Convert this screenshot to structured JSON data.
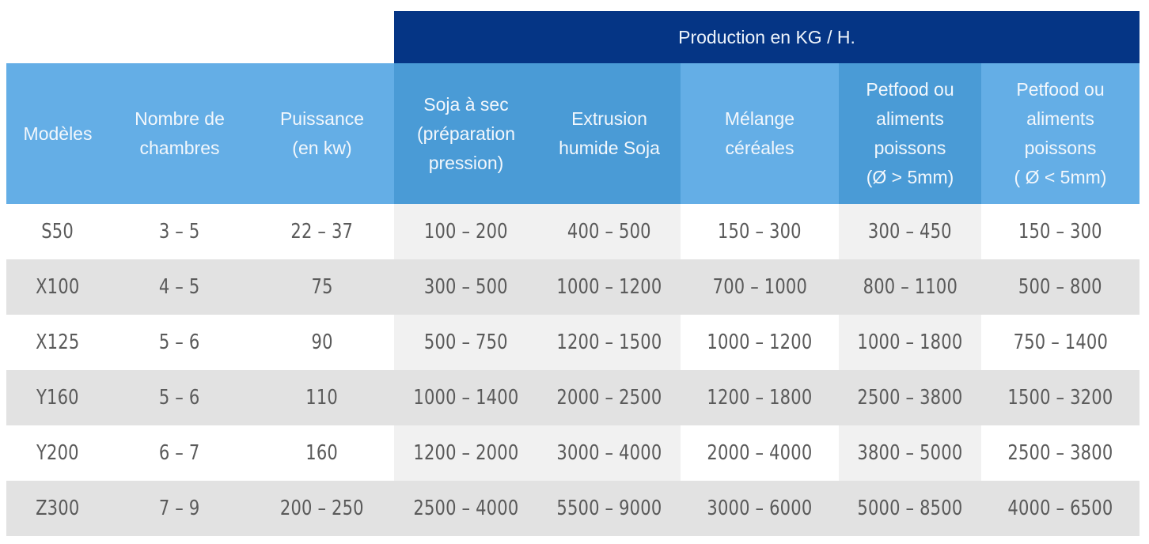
{
  "banner": {
    "title": "Production en KG / H."
  },
  "table": {
    "headers": [
      {
        "label": "Modèles"
      },
      {
        "label": "Nombre de chambres"
      },
      {
        "label": "Puissance (en kw)"
      },
      {
        "label": "Soja à sec (préparation pression)"
      },
      {
        "label": "Extrusion humide Soja"
      },
      {
        "label": "Mélange céréales"
      },
      {
        "label": "Petfood ou aliments poissons (Ø > 5mm)"
      },
      {
        "label": "Petfood ou aliments poissons ( Ø < 5mm)"
      }
    ],
    "header_lines": [
      [
        "Modèles"
      ],
      [
        "Nombre de",
        "chambres"
      ],
      [
        "Puissance",
        "(en kw)"
      ],
      [
        "Soja à sec",
        "(préparation",
        "pression)"
      ],
      [
        "Extrusion",
        "humide Soja"
      ],
      [
        "Mélange",
        "céréales"
      ],
      [
        "Petfood ou",
        "aliments",
        "poissons",
        "(Ø > 5mm)"
      ],
      [
        "Petfood ou",
        "aliments",
        "poissons",
        "( Ø < 5mm)"
      ]
    ],
    "rows": [
      [
        "S50",
        "3 – 5",
        "22 – 37",
        "100 – 200",
        "400 – 500",
        "150 – 300",
        "300 – 450",
        "150 – 300"
      ],
      [
        "X100",
        "4 – 5",
        "75",
        "300 – 500",
        "1000 – 1200",
        "700 – 1000",
        "800 – 1100",
        "500 – 800"
      ],
      [
        "X125",
        "5 – 6",
        "90",
        "500 – 750",
        "1200 – 1500",
        "1000 – 1200",
        "1000 – 1800",
        "750 – 1400"
      ],
      [
        "Y160",
        "5 – 6",
        "110",
        "1000 – 1400",
        "2000 – 2500",
        "1200 – 1800",
        "2500 – 3800",
        "1500 – 3200"
      ],
      [
        "Y200",
        "6 – 7",
        "160",
        "1200 – 2000",
        "3000 – 4000",
        "2000 – 4000",
        "3800 – 5000",
        "2500 – 3800"
      ],
      [
        "Z300",
        "7 – 9",
        "200 – 250",
        "2500 – 4000",
        "5500 – 9000",
        "3000 – 6000",
        "5000 – 8500",
        "4000 – 6500"
      ]
    ]
  },
  "colors": {
    "banner": "#053585",
    "header": "#64aee6",
    "header_dark": "#4a9bd6",
    "row_even": "#e2e2e2",
    "row_odd_shade": "#f1f1f1",
    "text": "#5a5a5a"
  }
}
